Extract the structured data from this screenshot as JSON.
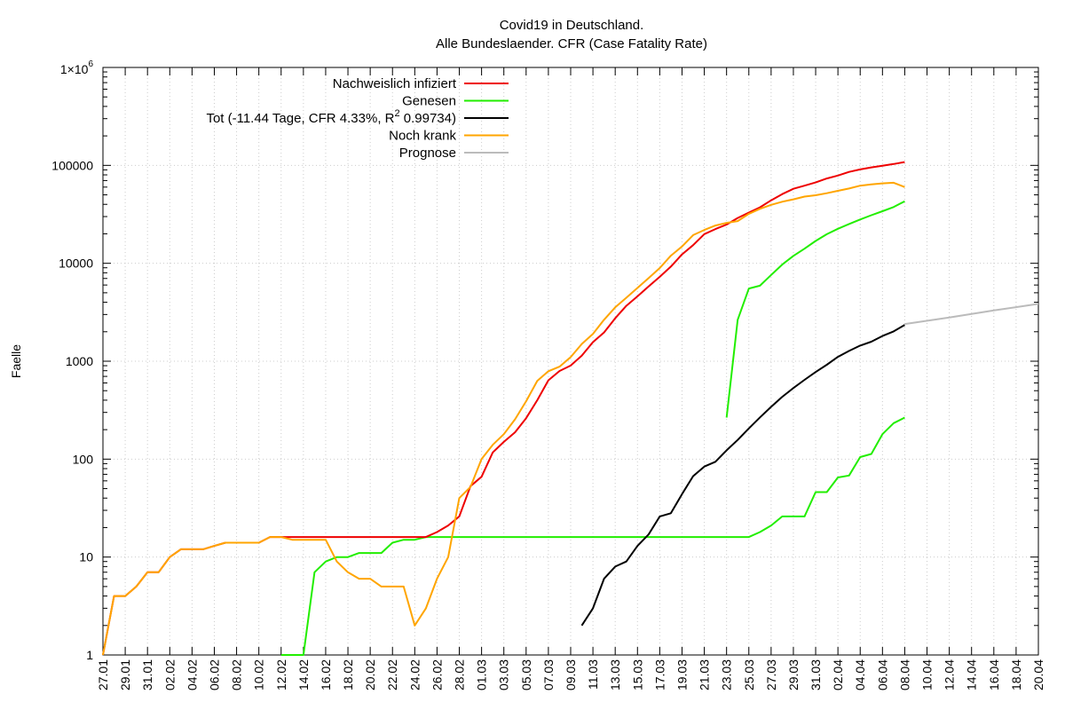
{
  "chart_data": {
    "type": "line",
    "title": "Covid19 in Deutschland.",
    "subtitle": "Alle Bundeslaender. CFR (Case Fatality Rate)",
    "xlabel": "",
    "ylabel": "Faelle",
    "yscale": "log",
    "ylim": [
      1,
      1000000
    ],
    "y_ticks": [
      {
        "value": 1,
        "label": "1"
      },
      {
        "value": 10,
        "label": "10"
      },
      {
        "value": 100,
        "label": "100"
      },
      {
        "value": 1000,
        "label": "1000"
      },
      {
        "value": 10000,
        "label": "10000"
      },
      {
        "value": 100000,
        "label": "100000"
      },
      {
        "value": 1000000,
        "label": "1×10",
        "superscript": "6"
      }
    ],
    "x_ticks": [
      "27.01",
      "29.01",
      "31.01",
      "02.02",
      "04.02",
      "06.02",
      "08.02",
      "10.02",
      "12.02",
      "14.02",
      "16.02",
      "18.02",
      "20.02",
      "22.02",
      "24.02",
      "26.02",
      "28.02",
      "01.03",
      "03.03",
      "05.03",
      "07.03",
      "09.03",
      "11.03",
      "13.03",
      "15.03",
      "17.03",
      "19.03",
      "21.03",
      "23.03",
      "25.03",
      "27.03",
      "29.03",
      "31.03",
      "02.04",
      "04.04",
      "06.04",
      "08.04",
      "10.04",
      "12.04",
      "14.04",
      "16.04",
      "18.04",
      "20.04"
    ],
    "x_range_days": [
      0,
      84
    ],
    "grid": true,
    "legend_position": "top-left",
    "series": [
      {
        "name": "Nachweislich infiziert",
        "color": "#ee0000",
        "x": [
          0,
          1,
          2,
          3,
          4,
          5,
          6,
          7,
          8,
          9,
          10,
          11,
          12,
          13,
          14,
          15,
          16,
          17,
          18,
          19,
          20,
          21,
          22,
          23,
          24,
          25,
          26,
          27,
          28,
          29,
          30,
          31,
          32,
          33,
          34,
          35,
          36,
          37,
          38,
          39,
          40,
          41,
          42,
          43,
          44,
          45,
          46,
          47,
          48,
          49,
          50,
          51,
          52,
          53,
          54,
          55,
          56,
          57,
          58,
          59,
          60,
          61,
          62,
          63,
          64,
          65,
          66,
          67,
          68,
          69,
          70,
          71,
          72
        ],
        "y": [
          1,
          4,
          4,
          5,
          7,
          7,
          10,
          12,
          12,
          12,
          13,
          14,
          14,
          14,
          14,
          16,
          16,
          16,
          16,
          16,
          16,
          16,
          16,
          16,
          16,
          16,
          16,
          16,
          16,
          16,
          18,
          21,
          26,
          53,
          66,
          117,
          150,
          188,
          262,
          400,
          639,
          795,
          902,
          1139,
          1567,
          1966,
          2745,
          3675,
          4599,
          5813,
          7272,
          9257,
          12327,
          15320,
          19848,
          22364,
          24873,
          29056,
          32986,
          37323,
          43938,
          50871,
          57695,
          62095,
          66885,
          73522,
          78758,
          85778,
          90948,
          95391,
          99225,
          103228,
          108202
        ]
      },
      {
        "name": "Genesen",
        "color": "#22ee00",
        "x": [
          16,
          17,
          18,
          19,
          20,
          21,
          22,
          23,
          24,
          25,
          26,
          27,
          28,
          29,
          30,
          31,
          32,
          33,
          34,
          35,
          36,
          37,
          38,
          39,
          40,
          41,
          42,
          43,
          44,
          45,
          46,
          47,
          48,
          49,
          50,
          51,
          52,
          53,
          54,
          55,
          56,
          57,
          58,
          59,
          60,
          61,
          62,
          63,
          64,
          65,
          66,
          67,
          68,
          69,
          70,
          71,
          72
        ],
        "y": [
          1,
          1,
          1,
          7,
          9,
          10,
          10,
          11,
          11,
          11,
          14,
          15,
          15,
          16,
          16,
          16,
          16,
          16,
          16,
          16,
          16,
          16,
          16,
          16,
          16,
          16,
          16,
          16,
          16,
          16,
          16,
          16,
          16,
          16,
          16,
          16,
          16,
          16,
          16,
          16,
          16,
          16,
          16,
          18,
          21,
          26,
          26,
          26,
          46,
          46,
          65,
          68,
          105,
          113,
          180,
          233,
          266
        ]
      },
      {
        "name": "Tot (-11.44 Tage, CFR 4.33%, R² 0.99734)",
        "color": "#000000",
        "x": [
          43,
          44,
          45,
          46,
          47,
          48,
          49,
          50,
          51,
          52,
          53,
          54,
          55,
          56,
          57,
          58,
          59,
          60,
          61,
          62,
          63,
          64,
          65,
          66,
          67,
          68,
          69,
          70,
          71,
          72
        ],
        "y": [
          2,
          3,
          6,
          8,
          9,
          13,
          17,
          26,
          28,
          44,
          67,
          84,
          94,
          123,
          157,
          206,
          267,
          342,
          433,
          533,
          645,
          775,
          920,
          1107,
          1275,
          1444,
          1584,
          1810,
          2016,
          2349
        ]
      },
      {
        "name": "Noch krank",
        "color": "#ffa500",
        "x": [
          0,
          1,
          2,
          3,
          4,
          5,
          6,
          7,
          8,
          9,
          10,
          11,
          12,
          13,
          14,
          15,
          16,
          17,
          18,
          19,
          20,
          21,
          22,
          23,
          24,
          25,
          26,
          27,
          28,
          29,
          30,
          31,
          32,
          33,
          34,
          35,
          36,
          37,
          38,
          39,
          40,
          41,
          42,
          43,
          44,
          45,
          46,
          47,
          48,
          49,
          50,
          51,
          52,
          53,
          54,
          55,
          56,
          57,
          58,
          59,
          60,
          61,
          62,
          63,
          64,
          65,
          66,
          67,
          68,
          69,
          70,
          71,
          72
        ],
        "y": [
          1,
          4,
          4,
          5,
          7,
          7,
          10,
          12,
          12,
          12,
          13,
          14,
          14,
          14,
          14,
          16,
          16,
          15,
          15,
          15,
          15,
          9,
          7,
          6,
          6,
          5,
          5,
          5,
          2,
          3,
          6,
          10,
          40,
          52,
          100,
          140,
          180,
          255,
          390,
          630,
          790,
          880,
          1100,
          1500,
          1900,
          2650,
          3550,
          4450,
          5600,
          7050,
          8950,
          11950,
          14850,
          19400,
          21900,
          24300,
          25900,
          27000,
          32000,
          36000,
          39500,
          42500,
          45000,
          48000,
          49500,
          52000,
          55000,
          58000,
          62000,
          64000,
          65500,
          66500,
          60000
        ]
      },
      {
        "name": "Prognose",
        "color": "#bbbbbb",
        "x": [
          72,
          76,
          80,
          84
        ],
        "y": [
          2400,
          2800,
          3300,
          3850
        ]
      }
    ],
    "extra_series": [
      {
        "name_hidden": true,
        "color": "#22ee00",
        "x": [
          56,
          57,
          58,
          59,
          60,
          61,
          62,
          63,
          64,
          65,
          66,
          67,
          68,
          69,
          70,
          71,
          72
        ],
        "y": [
          266,
          2650,
          5520,
          5900,
          7600,
          9700,
          11900,
          14100,
          16900,
          19800,
          22500,
          25200,
          28000,
          31000,
          34000,
          37500,
          43000
        ]
      },
      {
        "name_hidden": true,
        "color": "#22ee00",
        "x": [
          72
        ],
        "y": [
          51000
        ]
      }
    ]
  }
}
